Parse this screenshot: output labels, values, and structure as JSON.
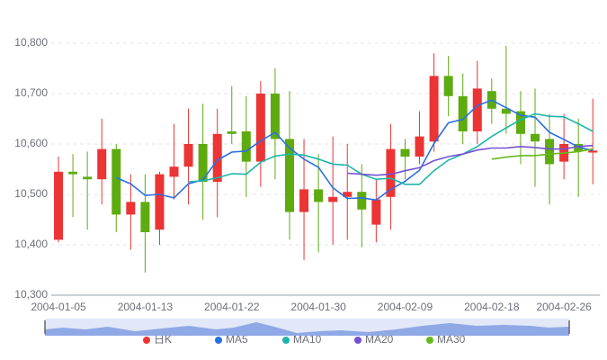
{
  "chart_data": {
    "type": "candlestick",
    "categories": [
      "2004-01-05",
      null,
      null,
      null,
      null,
      null,
      "2004-01-13",
      null,
      null,
      null,
      null,
      null,
      "2004-01-22",
      null,
      null,
      null,
      null,
      null,
      "2004-01-30",
      null,
      null,
      null,
      null,
      null,
      "2004-02-09",
      null,
      null,
      null,
      null,
      null,
      "2004-02-18",
      null,
      null,
      null,
      null,
      "2004-02-26",
      null,
      null
    ],
    "ylim": [
      10300,
      10800
    ],
    "yticks": [
      {
        "value": 10300,
        "label": "10,300"
      },
      {
        "value": 10400,
        "label": "10,400"
      },
      {
        "value": 10500,
        "label": "10,500"
      },
      {
        "value": 10600,
        "label": "10,600"
      },
      {
        "value": 10700,
        "label": "10,700"
      },
      {
        "value": 10800,
        "label": "10,800"
      }
    ],
    "grid": true,
    "series": [
      {
        "name": "日K",
        "type": "candlestick",
        "color": "#ec3434",
        "down_color": "#5eab10",
        "values": [
          [
            10410,
            10545,
            10405,
            10575
          ],
          [
            10545,
            10540,
            10455,
            10580
          ],
          [
            10535,
            10530,
            10430,
            10585
          ],
          [
            10530,
            10590,
            10480,
            10650
          ],
          [
            10590,
            10460,
            10425,
            10600
          ],
          [
            10460,
            10485,
            10390,
            10540
          ],
          [
            10485,
            10425,
            10345,
            10540
          ],
          [
            10430,
            10540,
            10400,
            10545
          ],
          [
            10535,
            10555,
            10490,
            10640
          ],
          [
            10555,
            10600,
            10480,
            10670
          ],
          [
            10600,
            10525,
            10450,
            10680
          ],
          [
            10525,
            10620,
            10455,
            10670
          ],
          [
            10625,
            10620,
            10600,
            10715
          ],
          [
            10625,
            10565,
            10495,
            10695
          ],
          [
            10565,
            10700,
            10515,
            10725
          ],
          [
            10700,
            10610,
            10530,
            10750
          ],
          [
            10610,
            10465,
            10410,
            10705
          ],
          [
            10465,
            10510,
            10370,
            10610
          ],
          [
            10510,
            10485,
            10385,
            10580
          ],
          [
            10485,
            10495,
            10400,
            10615
          ],
          [
            10495,
            10505,
            10410,
            10600
          ],
          [
            10505,
            10470,
            10395,
            10560
          ],
          [
            10440,
            10490,
            10405,
            10530
          ],
          [
            10495,
            10590,
            10430,
            10640
          ],
          [
            10590,
            10575,
            10530,
            10610
          ],
          [
            10575,
            10615,
            10560,
            10665
          ],
          [
            10605,
            10735,
            10585,
            10780
          ],
          [
            10735,
            10695,
            10655,
            10775
          ],
          [
            10695,
            10625,
            10600,
            10740
          ],
          [
            10625,
            10710,
            10600,
            10765
          ],
          [
            10705,
            10670,
            10640,
            10730
          ],
          [
            10670,
            10660,
            10620,
            10795
          ],
          [
            10665,
            10620,
            10560,
            10705
          ],
          [
            10620,
            10605,
            10515,
            10710
          ],
          [
            10610,
            10560,
            10480,
            10660
          ],
          [
            10565,
            10600,
            10530,
            10660
          ],
          [
            10600,
            10585,
            10495,
            10650
          ],
          [
            10583,
            10587,
            10520,
            10690
          ]
        ]
      },
      {
        "name": "MA5",
        "type": "line",
        "color": "#2b6fe3",
        "values": [
          null,
          null,
          null,
          null,
          10533,
          10521,
          10498,
          10500,
          10493,
          10521,
          10529,
          10568,
          10584,
          10586,
          10606,
          10623,
          10592,
          10570,
          10554,
          10513,
          10492,
          10493,
          10489,
          10510,
          10526,
          10548,
          10601,
          10642,
          10649,
          10676,
          10687,
          10672,
          10657,
          10653,
          10623,
          10609,
          10594,
          10587
        ]
      },
      {
        "name": "MA10",
        "type": "line",
        "color": "#1db5ab",
        "values": [
          null,
          null,
          null,
          null,
          null,
          null,
          null,
          null,
          null,
          10525,
          10527,
          10533,
          10541,
          10540,
          10564,
          10576,
          10580,
          10578,
          10570,
          10560,
          10558,
          10540,
          10530,
          10532,
          10520,
          10520,
          10547,
          10568,
          10580,
          10595,
          10615,
          10632,
          10648,
          10660,
          10655,
          10654,
          10640,
          10625
        ]
      },
      {
        "name": "MA20",
        "type": "line",
        "color": "#7550d4",
        "values": [
          null,
          null,
          null,
          null,
          null,
          null,
          null,
          null,
          null,
          null,
          null,
          null,
          null,
          null,
          null,
          null,
          null,
          null,
          null,
          null,
          10542,
          10540,
          10538,
          10540,
          10547,
          10553,
          10567,
          10575,
          10580,
          10588,
          10592,
          10592,
          10595,
          10593,
          10590,
          10590,
          10595,
          10597
        ]
      },
      {
        "name": "MA30",
        "type": "line",
        "color": "#67b81c",
        "values": [
          null,
          null,
          null,
          null,
          null,
          null,
          null,
          null,
          null,
          null,
          null,
          null,
          null,
          null,
          null,
          null,
          null,
          null,
          null,
          null,
          null,
          null,
          null,
          null,
          null,
          null,
          null,
          null,
          null,
          null,
          10570,
          10574,
          10577,
          10577,
          10580,
          10582,
          10585,
          10590
        ]
      }
    ]
  }
}
